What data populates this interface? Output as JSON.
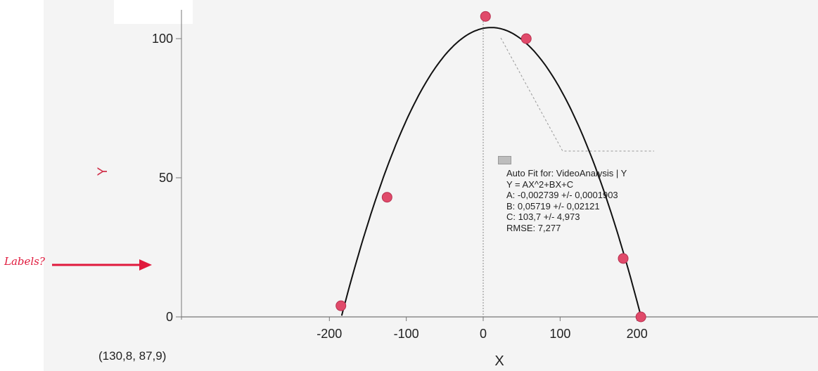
{
  "chart_data": {
    "type": "scatter",
    "xlabel": "X",
    "ylabel": "Y",
    "xlim": [
      -208,
      210
    ],
    "ylim": [
      -5,
      112
    ],
    "x_ticks": [
      "-200",
      "-100",
      "0",
      "100",
      "200"
    ],
    "y_ticks": [
      "0",
      "50",
      "100"
    ],
    "grid": false,
    "series": [
      {
        "kind": "points",
        "color": "#e04a6a",
        "points": [
          {
            "x": -185,
            "y": 4
          },
          {
            "x": -125,
            "y": 43
          },
          {
            "x": 3,
            "y": 108
          },
          {
            "x": 56,
            "y": 100
          },
          {
            "x": 182,
            "y": 21
          },
          {
            "x": 205,
            "y": 0
          }
        ]
      },
      {
        "kind": "fit",
        "model": "quadratic",
        "color": "#111111",
        "A": -0.002739,
        "B": 0.05719,
        "C": 103.7,
        "x_range": [
          -184,
          207
        ]
      }
    ],
    "fit_box": {
      "title": "Auto Fit for: VideoAnalysis | Y",
      "equation": "Y = AX^2+BX+C",
      "a": "A: -0,002739 +/- 0,0001903",
      "b": "B: 0,05719 +/- 0,02121",
      "c": "C: 103,7 +/- 4,973",
      "rmse": "RMSE: 7,277"
    },
    "cursor_readout": "(130,8, 87,9)",
    "annotation": {
      "label": "Labels?",
      "color": "#e0193c"
    }
  }
}
